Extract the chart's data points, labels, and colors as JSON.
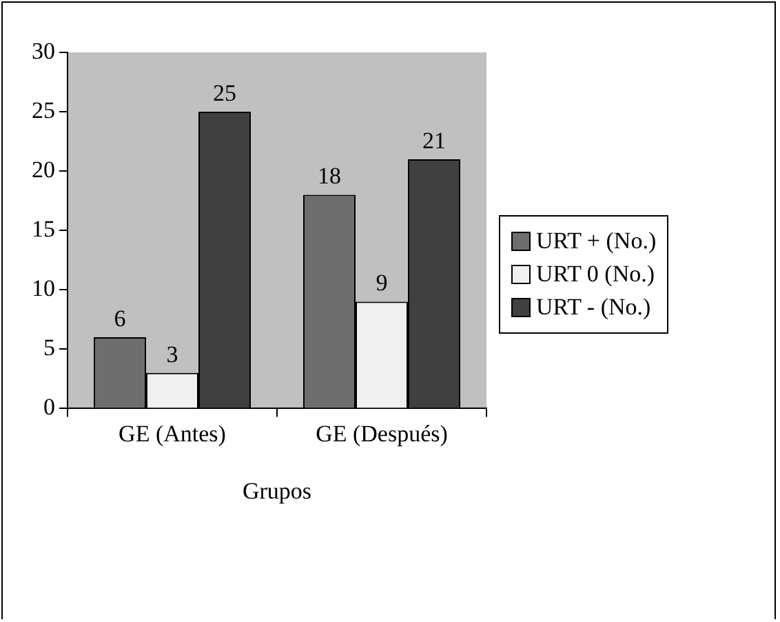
{
  "chart_data": {
    "type": "bar",
    "xlabel": "Grupos",
    "categories": [
      "GE (Antes)",
      "GE (Después)"
    ],
    "series": [
      {
        "name": "URT + (No.)",
        "color": "#6e6e6e",
        "values": [
          6,
          18
        ]
      },
      {
        "name": "URT 0 (No.)",
        "color": "#f0f0f0",
        "values": [
          3,
          9
        ]
      },
      {
        "name": "URT - (No.)",
        "color": "#404040",
        "values": [
          25,
          21
        ]
      }
    ],
    "ylim": [
      0,
      30
    ],
    "yticks": [
      0,
      5,
      10,
      15,
      20,
      25,
      30
    ],
    "grid": false,
    "legend": "right",
    "data_labels": true
  }
}
